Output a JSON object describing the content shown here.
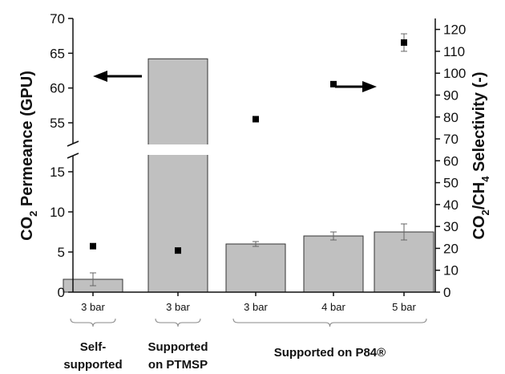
{
  "chart_data": {
    "type": "bar",
    "categories": [
      "3 bar",
      "3 bar",
      "3 bar",
      "4 bar",
      "5 bar"
    ],
    "groups": [
      {
        "label_lines": [
          "Self-",
          "supported"
        ],
        "members": [
          0
        ]
      },
      {
        "label_lines": [
          "Supported",
          "on PTMSP"
        ],
        "members": [
          1
        ]
      },
      {
        "label_lines": [
          "Supported on P84®"
        ],
        "members": [
          2,
          3,
          4
        ]
      }
    ],
    "series": [
      {
        "values": [
          1.6,
          64.2,
          6.0,
          7.0,
          7.5
        ],
        "errors": [
          0.8,
          null,
          0.3,
          0.5,
          1.0
        ],
        "axis": "left",
        "marker": "bar"
      },
      {
        "values": [
          21,
          19,
          79,
          95,
          114
        ],
        "errors": [
          null,
          null,
          null,
          null,
          4
        ],
        "axis": "right",
        "marker": "square"
      }
    ],
    "ylabel": {
      "main": "CO",
      "sub": "2",
      "rest": " Permeance (GPU)"
    },
    "y2label": {
      "p1": "CO",
      "s1": "2",
      "p2": "/CH",
      "s2": "4",
      "p3": " Selectivity (-)"
    },
    "y_lower": {
      "range": [
        0,
        17
      ],
      "ticks": [
        "0",
        "5",
        "10",
        "15"
      ]
    },
    "y_upper": {
      "range": [
        52,
        70
      ],
      "ticks": [
        "55",
        "60",
        "65",
        "70"
      ]
    },
    "y2": {
      "range": [
        0,
        125
      ],
      "ticks": [
        "0",
        "10",
        "20",
        "30",
        "40",
        "50",
        "60",
        "70",
        "80",
        "90",
        "100",
        "110",
        "120"
      ]
    },
    "axis_break": true,
    "arrows": [
      {
        "direction": "left",
        "axis": "left"
      },
      {
        "direction": "right",
        "axis": "right"
      }
    ],
    "colors": {
      "bar_fill": "#c0c0c0",
      "bar_stroke": "#333333",
      "marker": "#000000",
      "axis": "#111111"
    }
  }
}
